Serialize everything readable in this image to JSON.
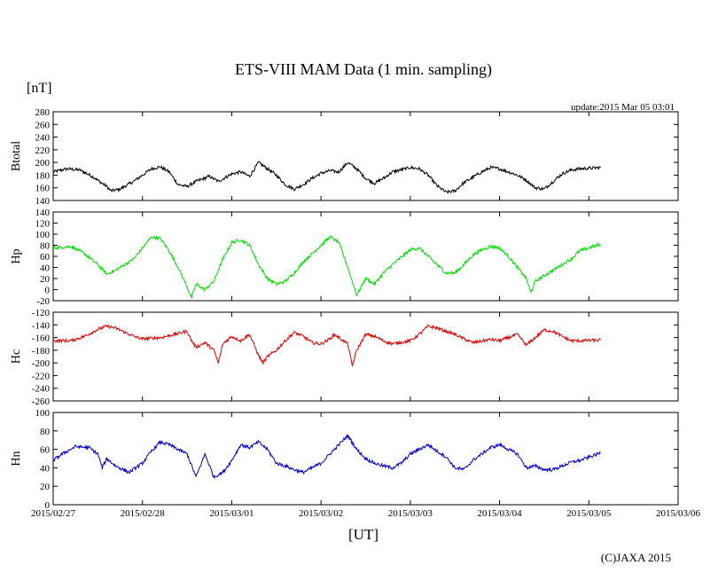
{
  "chart_data": {
    "type": "line",
    "title": "ETS-VIII MAM Data (1 min. sampling)",
    "unit_label": "[nT]",
    "update_text": "update:2015 Mar 05 03:01",
    "xlabel": "[UT]",
    "copyright": "(C)JAXA 2015",
    "x_ticks": [
      "2015/02/27",
      "2015/02/28",
      "2015/03/01",
      "2015/03/02",
      "2015/03/03",
      "2015/03/04",
      "2015/03/05",
      "2015/03/06"
    ],
    "x_range_days": [
      0,
      7
    ],
    "data_end_day": 6.13,
    "panels": [
      {
        "name": "btotal",
        "ylabel": "Btotal",
        "color": "#000000",
        "ylim": [
          140,
          280
        ],
        "yticks": [
          140,
          160,
          180,
          200,
          220,
          240,
          260,
          280
        ],
        "series": [
          [
            0.0,
            185
          ],
          [
            0.15,
            190
          ],
          [
            0.3,
            188
          ],
          [
            0.45,
            177
          ],
          [
            0.6,
            162
          ],
          [
            0.65,
            155
          ],
          [
            0.75,
            158
          ],
          [
            0.9,
            170
          ],
          [
            1.1,
            190
          ],
          [
            1.2,
            193
          ],
          [
            1.3,
            185
          ],
          [
            1.4,
            165
          ],
          [
            1.5,
            162
          ],
          [
            1.6,
            170
          ],
          [
            1.75,
            178
          ],
          [
            1.85,
            170
          ],
          [
            2.0,
            182
          ],
          [
            2.1,
            185
          ],
          [
            2.2,
            178
          ],
          [
            2.3,
            200
          ],
          [
            2.4,
            190
          ],
          [
            2.5,
            180
          ],
          [
            2.6,
            165
          ],
          [
            2.7,
            158
          ],
          [
            2.8,
            165
          ],
          [
            2.9,
            175
          ],
          [
            3.0,
            183
          ],
          [
            3.1,
            187
          ],
          [
            3.2,
            185
          ],
          [
            3.3,
            200
          ],
          [
            3.4,
            190
          ],
          [
            3.5,
            175
          ],
          [
            3.6,
            167
          ],
          [
            3.7,
            175
          ],
          [
            3.8,
            185
          ],
          [
            4.0,
            192
          ],
          [
            4.1,
            190
          ],
          [
            4.2,
            180
          ],
          [
            4.3,
            163
          ],
          [
            4.4,
            153
          ],
          [
            4.5,
            155
          ],
          [
            4.6,
            168
          ],
          [
            4.8,
            185
          ],
          [
            4.9,
            192
          ],
          [
            5.0,
            190
          ],
          [
            5.1,
            185
          ],
          [
            5.2,
            180
          ],
          [
            5.3,
            172
          ],
          [
            5.4,
            160
          ],
          [
            5.5,
            158
          ],
          [
            5.6,
            170
          ],
          [
            5.7,
            182
          ],
          [
            5.8,
            188
          ],
          [
            5.9,
            190
          ],
          [
            6.13,
            192
          ]
        ]
      },
      {
        "name": "hp",
        "ylabel": "Hp",
        "color": "#00dd00",
        "ylim": [
          -20,
          140
        ],
        "yticks": [
          -20,
          0,
          20,
          40,
          60,
          80,
          100,
          120,
          140
        ],
        "series": [
          [
            0.0,
            75
          ],
          [
            0.2,
            78
          ],
          [
            0.35,
            65
          ],
          [
            0.5,
            45
          ],
          [
            0.6,
            28
          ],
          [
            0.7,
            35
          ],
          [
            0.9,
            55
          ],
          [
            1.0,
            75
          ],
          [
            1.1,
            95
          ],
          [
            1.2,
            92
          ],
          [
            1.3,
            70
          ],
          [
            1.4,
            40
          ],
          [
            1.5,
            5
          ],
          [
            1.55,
            -15
          ],
          [
            1.6,
            10
          ],
          [
            1.7,
            0
          ],
          [
            1.8,
            15
          ],
          [
            1.9,
            55
          ],
          [
            2.0,
            85
          ],
          [
            2.1,
            90
          ],
          [
            2.2,
            80
          ],
          [
            2.3,
            45
          ],
          [
            2.4,
            20
          ],
          [
            2.5,
            10
          ],
          [
            2.6,
            15
          ],
          [
            2.7,
            30
          ],
          [
            2.8,
            50
          ],
          [
            2.9,
            65
          ],
          [
            3.0,
            80
          ],
          [
            3.1,
            95
          ],
          [
            3.2,
            85
          ],
          [
            3.3,
            40
          ],
          [
            3.35,
            15
          ],
          [
            3.4,
            -10
          ],
          [
            3.5,
            20
          ],
          [
            3.6,
            10
          ],
          [
            3.7,
            30
          ],
          [
            3.8,
            45
          ],
          [
            4.0,
            72
          ],
          [
            4.1,
            75
          ],
          [
            4.2,
            60
          ],
          [
            4.3,
            45
          ],
          [
            4.4,
            30
          ],
          [
            4.5,
            30
          ],
          [
            4.6,
            45
          ],
          [
            4.7,
            62
          ],
          [
            4.8,
            72
          ],
          [
            4.9,
            78
          ],
          [
            5.0,
            75
          ],
          [
            5.1,
            60
          ],
          [
            5.2,
            40
          ],
          [
            5.3,
            20
          ],
          [
            5.35,
            -5
          ],
          [
            5.4,
            15
          ],
          [
            5.5,
            25
          ],
          [
            5.6,
            35
          ],
          [
            5.8,
            55
          ],
          [
            5.9,
            70
          ],
          [
            6.13,
            82
          ]
        ]
      },
      {
        "name": "hc",
        "ylabel": "Hc",
        "color": "#dd0000",
        "ylim": [
          -260,
          -120
        ],
        "yticks": [
          -260,
          -240,
          -220,
          -200,
          -180,
          -160,
          -140,
          -120
        ],
        "series": [
          [
            0.0,
            -165
          ],
          [
            0.2,
            -165
          ],
          [
            0.35,
            -158
          ],
          [
            0.5,
            -147
          ],
          [
            0.6,
            -142
          ],
          [
            0.7,
            -145
          ],
          [
            0.9,
            -158
          ],
          [
            1.0,
            -162
          ],
          [
            1.2,
            -160
          ],
          [
            1.3,
            -157
          ],
          [
            1.5,
            -150
          ],
          [
            1.55,
            -165
          ],
          [
            1.6,
            -175
          ],
          [
            1.7,
            -168
          ],
          [
            1.8,
            -180
          ],
          [
            1.85,
            -200
          ],
          [
            1.9,
            -170
          ],
          [
            2.0,
            -158
          ],
          [
            2.1,
            -165
          ],
          [
            2.2,
            -155
          ],
          [
            2.3,
            -188
          ],
          [
            2.35,
            -200
          ],
          [
            2.4,
            -190
          ],
          [
            2.5,
            -180
          ],
          [
            2.6,
            -165
          ],
          [
            2.7,
            -152
          ],
          [
            2.8,
            -158
          ],
          [
            2.9,
            -168
          ],
          [
            3.0,
            -170
          ],
          [
            3.1,
            -162
          ],
          [
            3.15,
            -155
          ],
          [
            3.3,
            -170
          ],
          [
            3.35,
            -205
          ],
          [
            3.4,
            -180
          ],
          [
            3.5,
            -155
          ],
          [
            3.6,
            -158
          ],
          [
            3.7,
            -165
          ],
          [
            3.8,
            -170
          ],
          [
            4.0,
            -165
          ],
          [
            4.1,
            -155
          ],
          [
            4.2,
            -142
          ],
          [
            4.3,
            -145
          ],
          [
            4.4,
            -150
          ],
          [
            4.5,
            -155
          ],
          [
            4.6,
            -162
          ],
          [
            4.7,
            -168
          ],
          [
            4.9,
            -163
          ],
          [
            5.0,
            -165
          ],
          [
            5.1,
            -160
          ],
          [
            5.2,
            -155
          ],
          [
            5.3,
            -172
          ],
          [
            5.4,
            -160
          ],
          [
            5.5,
            -148
          ],
          [
            5.6,
            -150
          ],
          [
            5.7,
            -158
          ],
          [
            5.8,
            -165
          ],
          [
            5.9,
            -165
          ],
          [
            6.13,
            -164
          ]
        ]
      },
      {
        "name": "hn",
        "ylabel": "Hn",
        "color": "#0000cc",
        "ylim": [
          0,
          100
        ],
        "yticks": [
          0,
          20,
          40,
          60,
          80,
          100
        ],
        "series": [
          [
            0.0,
            48
          ],
          [
            0.1,
            55
          ],
          [
            0.25,
            63
          ],
          [
            0.4,
            62
          ],
          [
            0.5,
            55
          ],
          [
            0.55,
            40
          ],
          [
            0.6,
            50
          ],
          [
            0.7,
            42
          ],
          [
            0.85,
            35
          ],
          [
            1.0,
            45
          ],
          [
            1.1,
            58
          ],
          [
            1.2,
            68
          ],
          [
            1.3,
            65
          ],
          [
            1.4,
            60
          ],
          [
            1.5,
            55
          ],
          [
            1.6,
            30
          ],
          [
            1.7,
            55
          ],
          [
            1.8,
            30
          ],
          [
            1.9,
            35
          ],
          [
            2.0,
            48
          ],
          [
            2.1,
            65
          ],
          [
            2.2,
            62
          ],
          [
            2.3,
            68
          ],
          [
            2.4,
            60
          ],
          [
            2.5,
            45
          ],
          [
            2.6,
            42
          ],
          [
            2.7,
            38
          ],
          [
            2.8,
            35
          ],
          [
            2.9,
            40
          ],
          [
            3.0,
            45
          ],
          [
            3.1,
            55
          ],
          [
            3.2,
            65
          ],
          [
            3.3,
            75
          ],
          [
            3.4,
            60
          ],
          [
            3.5,
            50
          ],
          [
            3.6,
            45
          ],
          [
            3.7,
            42
          ],
          [
            3.8,
            40
          ],
          [
            3.9,
            45
          ],
          [
            4.0,
            55
          ],
          [
            4.1,
            60
          ],
          [
            4.2,
            65
          ],
          [
            4.3,
            58
          ],
          [
            4.4,
            52
          ],
          [
            4.5,
            40
          ],
          [
            4.6,
            38
          ],
          [
            4.7,
            48
          ],
          [
            4.8,
            55
          ],
          [
            4.9,
            62
          ],
          [
            5.0,
            65
          ],
          [
            5.1,
            60
          ],
          [
            5.2,
            55
          ],
          [
            5.3,
            40
          ],
          [
            5.4,
            42
          ],
          [
            5.5,
            38
          ],
          [
            5.6,
            38
          ],
          [
            5.7,
            42
          ],
          [
            5.8,
            46
          ],
          [
            5.9,
            48
          ],
          [
            6.13,
            56
          ]
        ]
      }
    ]
  }
}
